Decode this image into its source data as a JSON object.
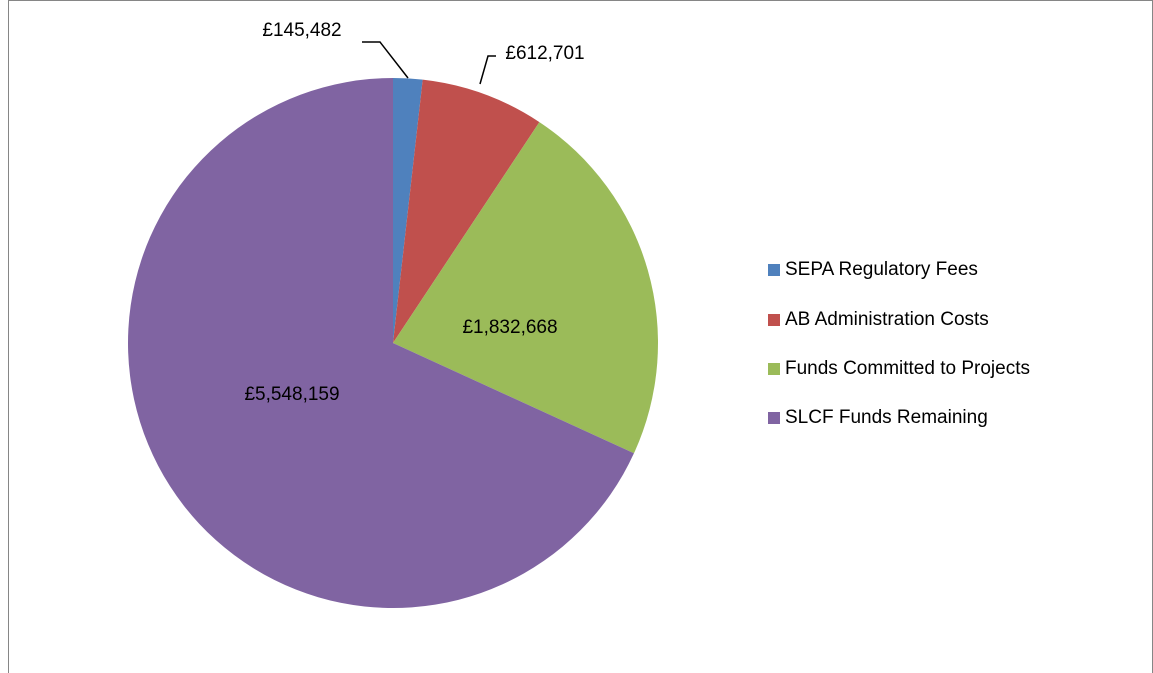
{
  "chart_data": {
    "type": "pie",
    "categories": [
      "SEPA Regulatory Fees",
      "AB Administration Costs",
      "Funds Committed to Projects",
      "SLCF Funds Remaining"
    ],
    "values": [
      145482,
      612701,
      1832668,
      5548159
    ],
    "value_labels": [
      "£145,482",
      "£612,701",
      "£1,832,668",
      "£5,548,159"
    ],
    "colors": [
      "#4f81bd",
      "#c0504d",
      "#9bbb59",
      "#8064a2"
    ],
    "legend": "right"
  }
}
